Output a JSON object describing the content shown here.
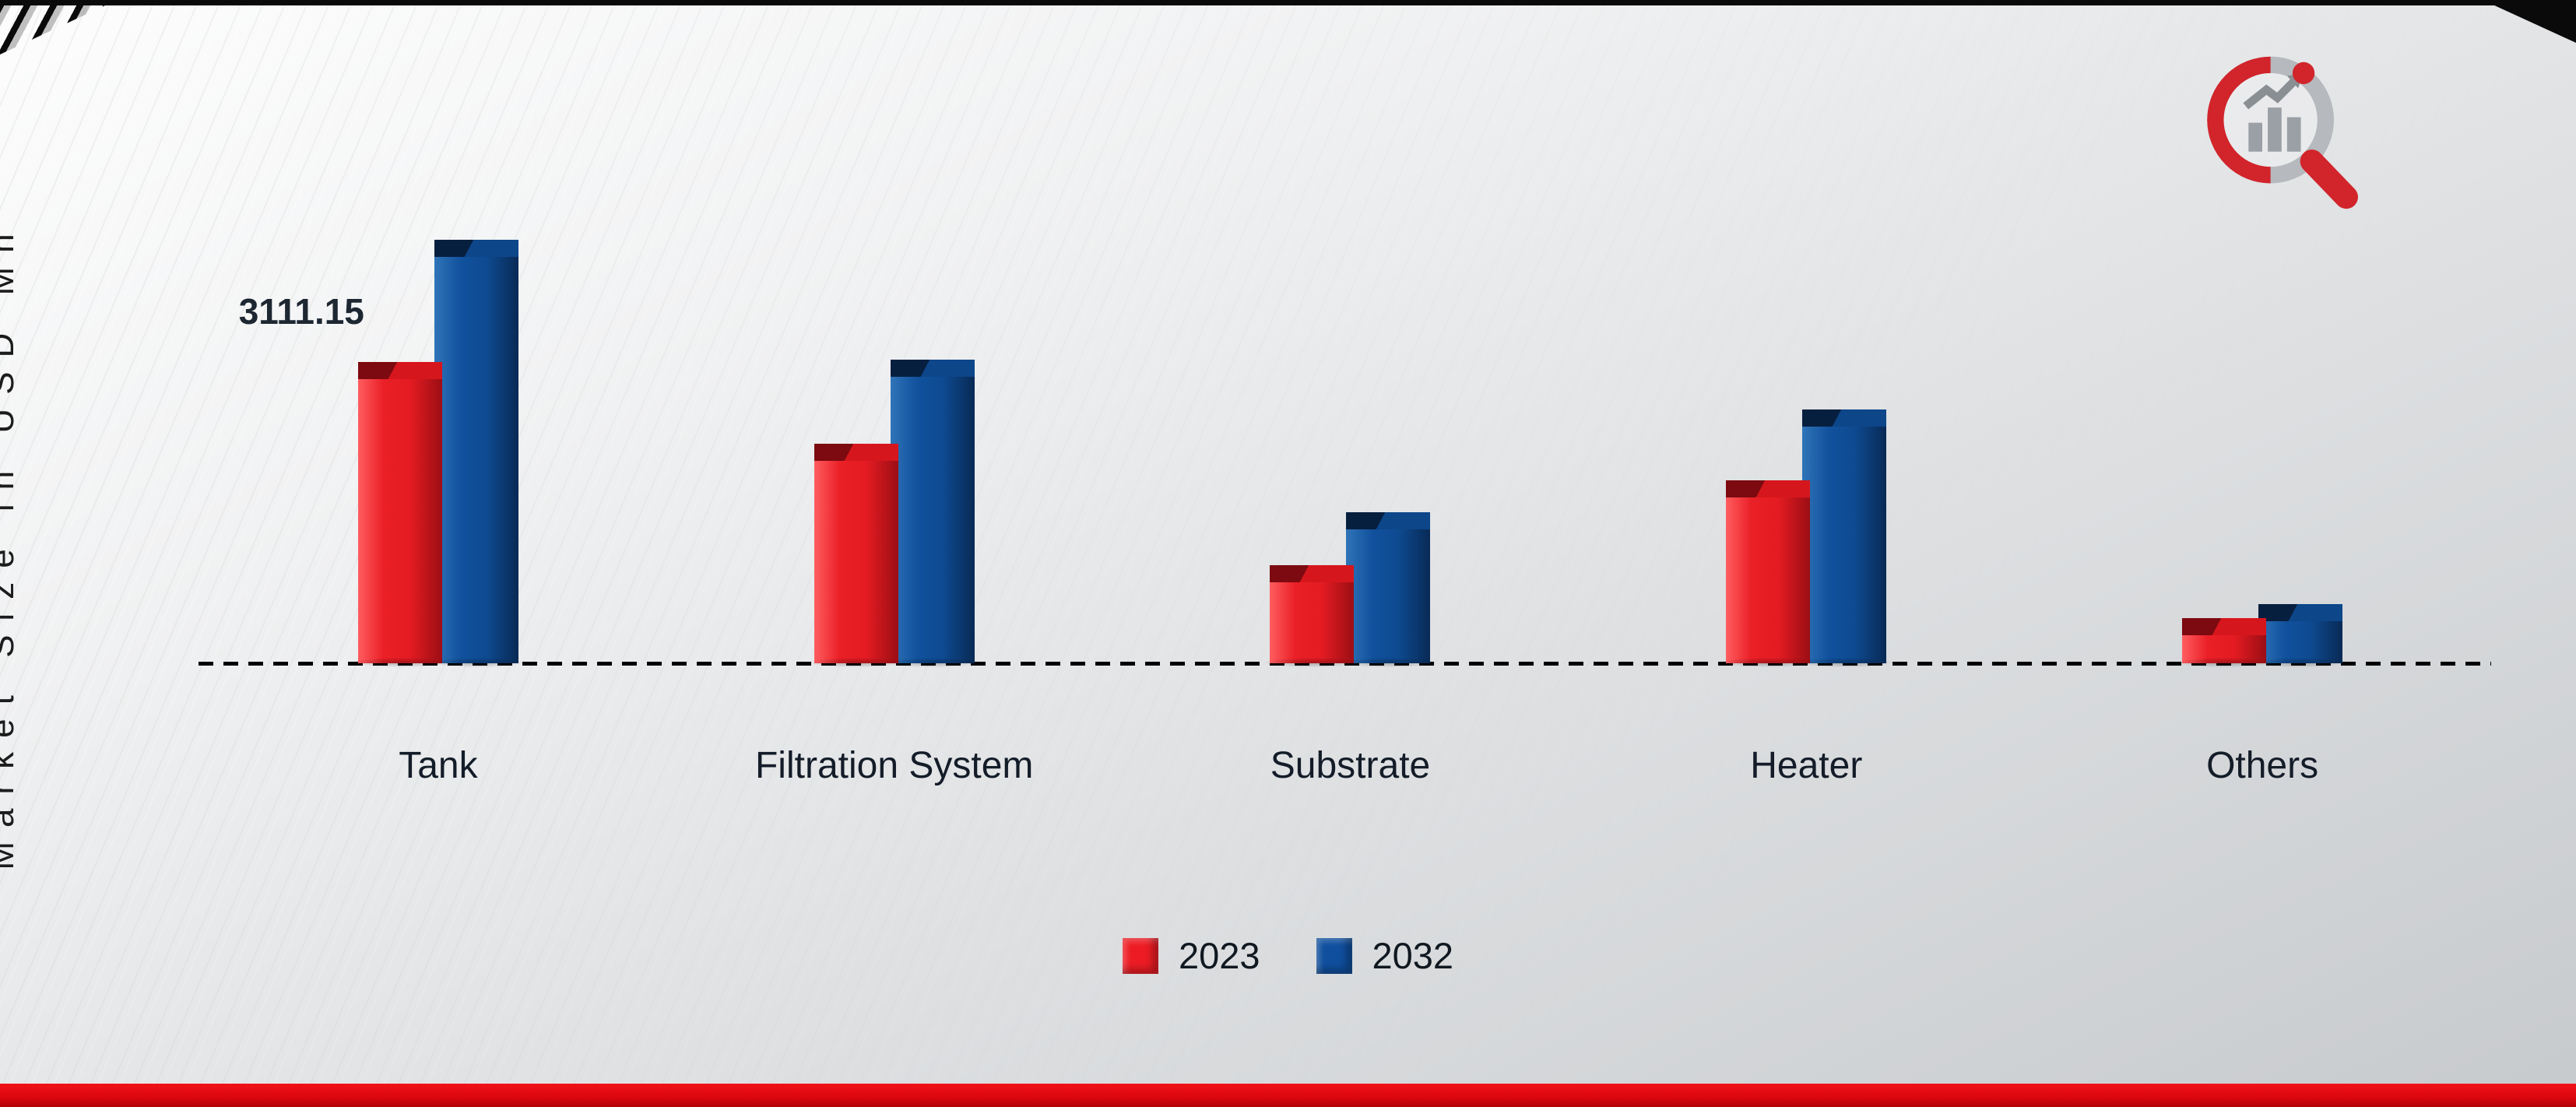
{
  "chart_data": {
    "type": "bar",
    "title": "",
    "xlabel": "",
    "ylabel": "Market Size in USD Mn",
    "categories": [
      "Tank",
      "Filtration System",
      "Substrate",
      "Heater",
      "Others"
    ],
    "series": [
      {
        "name": "2023",
        "color": "#ed1c24",
        "values": [
          3111.15,
          2270,
          1010,
          1890,
          470
        ]
      },
      {
        "name": "2032",
        "color": "#0f4f9e",
        "values": [
          4370,
          3130,
          1555,
          2620,
          610
        ]
      }
    ],
    "ylim": [
      0,
      4500
    ],
    "grid": false,
    "legend_position": "bottom",
    "annotations": [
      {
        "text": "3111.15",
        "category": "Tank",
        "series": "2023"
      }
    ]
  },
  "colors": {
    "bar_red": "#ed1c24",
    "bar_blue": "#0f4f9e",
    "bottom_accent_bar": "#de070e",
    "background_top": "#fdfdfd",
    "background_bottom": "#c7cacd",
    "baseline": "#000000"
  }
}
